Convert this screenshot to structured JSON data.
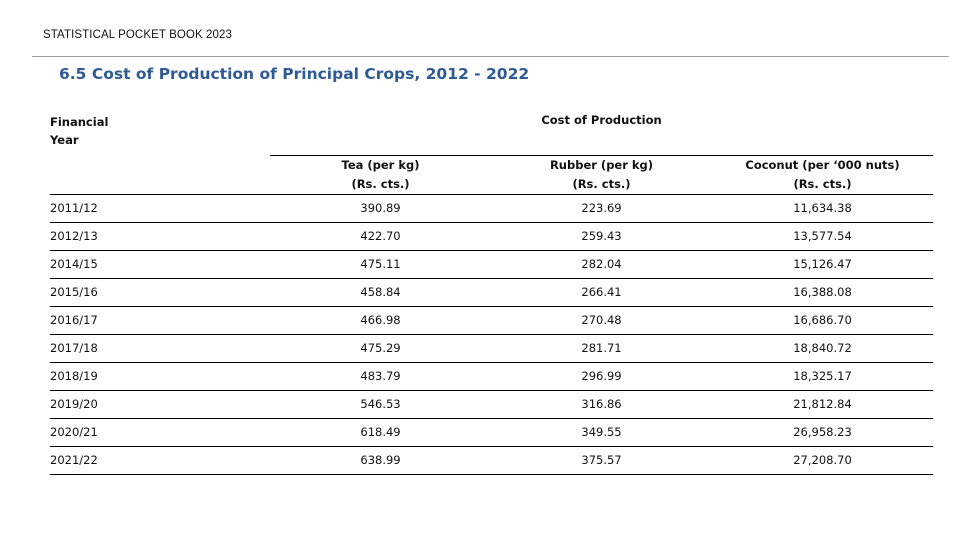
{
  "header": "STATISTICAL POCKET BOOK 2023",
  "title": "6.5 Cost of Production of Principal Crops, 2012 - 2022",
  "table": {
    "year_header": [
      "Financial",
      "Year"
    ],
    "group_header": "Cost of  Production",
    "columns": [
      {
        "name": "Tea  (per kg)",
        "unit": "(Rs. cts.)"
      },
      {
        "name": "Rubber (per kg)",
        "unit": "(Rs. cts.)"
      },
      {
        "name": "Coconut (per ‘000 nuts)",
        "unit": "(Rs. cts.)"
      }
    ],
    "rows": [
      [
        "2011/12",
        "390.89",
        "223.69",
        "11,634.38"
      ],
      [
        "2012/13",
        "422.70",
        "259.43",
        "13,577.54"
      ],
      [
        "2014/15",
        "475.11",
        "282.04",
        "15,126.47"
      ],
      [
        "2015/16",
        "458.84",
        "266.41",
        "16,388.08"
      ],
      [
        "2016/17",
        "466.98",
        "270.48",
        "16,686.70"
      ],
      [
        "2017/18",
        "475.29",
        "281.71",
        "18,840.72"
      ],
      [
        "2018/19",
        "483.79",
        "296.99",
        "18,325.17"
      ],
      [
        "2019/20",
        "546.53",
        "316.86",
        "21,812.84"
      ],
      [
        "2020/21",
        "618.49",
        "349.55",
        "26,958.23"
      ],
      [
        "2021/22",
        "638.99",
        "375.57",
        "27,208.70"
      ]
    ]
  }
}
